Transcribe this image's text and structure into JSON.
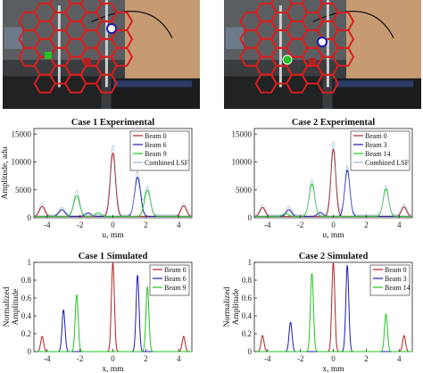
{
  "photos": [
    {
      "caption": ""
    },
    {
      "caption": ""
    }
  ],
  "colors": {
    "beam_red": "#b22222",
    "beam_blue": "#1c1cb0",
    "beam_green": "#22c422",
    "combined": "#9ab8d8",
    "hex": "#d81e1e"
  },
  "chart_data": [
    {
      "type": "line",
      "title": "Case 1 Experimental",
      "xlabel": "u, mm",
      "ylabel": "Amplitude, adu",
      "xlim": [
        -4.8,
        4.8
      ],
      "ylim": [
        0,
        16000
      ],
      "xticks": [
        "-4",
        "-2",
        "0",
        "2",
        "4"
      ],
      "yticks": [
        "0",
        "5000",
        "10000",
        "15000"
      ],
      "legend": "top-right",
      "series": [
        {
          "name": "Beam 0",
          "color": "#b22222",
          "peaks": [
            [
              -4.3,
              1800
            ],
            [
              0.0,
              11300
            ],
            [
              4.3,
              1900
            ]
          ],
          "width": 0.16,
          "base": 250
        },
        {
          "name": "Beam 6",
          "color": "#1c1cb0",
          "peaks": [
            [
              -3.1,
              1200
            ],
            [
              1.5,
              7000
            ],
            [
              -1.5,
              600
            ]
          ],
          "width": 0.18,
          "base": 250
        },
        {
          "name": "Beam 9",
          "color": "#22c422",
          "peaks": [
            [
              -2.2,
              3700
            ],
            [
              2.1,
              4700
            ],
            [
              -0.9,
              600
            ]
          ],
          "width": 0.18,
          "base": 250
        },
        {
          "name": "Combined LSF",
          "color": "#9ab8d8",
          "peaks": [
            [
              -4.3,
              2000
            ],
            [
              -3.1,
              1400
            ],
            [
              -2.2,
              4400
            ],
            [
              0.0,
              12500
            ],
            [
              1.5,
              7800
            ],
            [
              2.1,
              5200
            ],
            [
              4.3,
              2100
            ]
          ],
          "width": 0.17,
          "base": 500
        }
      ]
    },
    {
      "type": "line",
      "title": "Case 2 Experimental",
      "xlabel": "u, mm",
      "ylabel": "",
      "xlim": [
        -4.8,
        4.8
      ],
      "ylim": [
        0,
        16000
      ],
      "xticks": [
        "-4",
        "-2",
        "0",
        "2",
        "4"
      ],
      "yticks": [
        "0",
        "5000",
        "10000",
        "15000"
      ],
      "legend": "top-right",
      "series": [
        {
          "name": "Beam 0",
          "color": "#b22222",
          "peaks": [
            [
              -4.3,
              1600
            ],
            [
              0.0,
              12000
            ],
            [
              4.3,
              1700
            ]
          ],
          "width": 0.15,
          "base": 250
        },
        {
          "name": "Beam 3",
          "color": "#1c1cb0",
          "peaks": [
            [
              -2.7,
              1200
            ],
            [
              0.85,
              8300
            ],
            [
              -0.8,
              700
            ]
          ],
          "width": 0.16,
          "base": 250
        },
        {
          "name": "Beam 14",
          "color": "#22c422",
          "peaks": [
            [
              -1.3,
              5800
            ],
            [
              3.2,
              4900
            ],
            [
              -2.9,
              500
            ]
          ],
          "width": 0.17,
          "base": 250
        },
        {
          "name": "Combined LSF",
          "color": "#9ab8d8",
          "peaks": [
            [
              -4.3,
              1800
            ],
            [
              -2.7,
              1500
            ],
            [
              -1.3,
              6400
            ],
            [
              0.0,
              13200
            ],
            [
              0.85,
              8900
            ],
            [
              3.2,
              5300
            ],
            [
              4.3,
              1900
            ]
          ],
          "width": 0.16,
          "base": 500
        }
      ]
    },
    {
      "type": "line",
      "title": "Case 1 Simulated",
      "xlabel": "x, mm",
      "ylabel": "Normalized Amplitude",
      "xlim": [
        -4.8,
        4.8
      ],
      "ylim": [
        0,
        1
      ],
      "xticks": [
        "-4",
        "-2",
        "0",
        "2",
        "4"
      ],
      "yticks": [
        "0",
        "0.2",
        "0.4",
        "0.6",
        "0.8",
        "1"
      ],
      "legend": "top-right",
      "series": [
        {
          "name": "Beam 0",
          "color": "#b22222",
          "peaks": [
            [
              -4.3,
              0.17
            ],
            [
              0.0,
              1.0
            ],
            [
              4.3,
              0.17
            ]
          ],
          "width": 0.09,
          "base": 0
        },
        {
          "name": "Beam 6",
          "color": "#1c1cb0",
          "peaks": [
            [
              -3.0,
              0.47
            ],
            [
              1.5,
              0.86
            ]
          ],
          "width": 0.09,
          "base": 0
        },
        {
          "name": "Beam 9",
          "color": "#22c422",
          "peaks": [
            [
              -2.2,
              0.64
            ],
            [
              2.1,
              0.73
            ]
          ],
          "width": 0.09,
          "base": 0
        }
      ]
    },
    {
      "type": "line",
      "title": "Case 2 Simulated",
      "xlabel": "x, mm",
      "ylabel": "Normalized Amplitude",
      "xlim": [
        -4.8,
        4.8
      ],
      "ylim": [
        0,
        1
      ],
      "xticks": [
        "-4",
        "-2",
        "0",
        "2",
        "4"
      ],
      "yticks": [
        "0",
        "0.2",
        "0.4",
        "0.6",
        "0.8",
        "1"
      ],
      "legend": "top-right",
      "series": [
        {
          "name": "Beam 0",
          "color": "#b22222",
          "peaks": [
            [
              -4.3,
              0.18
            ],
            [
              0.0,
              1.0
            ],
            [
              4.3,
              0.18
            ]
          ],
          "width": 0.09,
          "base": 0
        },
        {
          "name": "Beam 3",
          "color": "#1c1cb0",
          "peaks": [
            [
              -2.6,
              0.33
            ],
            [
              0.85,
              0.97
            ]
          ],
          "width": 0.09,
          "base": 0
        },
        {
          "name": "Beam 14",
          "color": "#22c422",
          "peaks": [
            [
              -1.3,
              0.88
            ],
            [
              3.2,
              0.42
            ]
          ],
          "width": 0.09,
          "base": 0
        }
      ]
    }
  ]
}
